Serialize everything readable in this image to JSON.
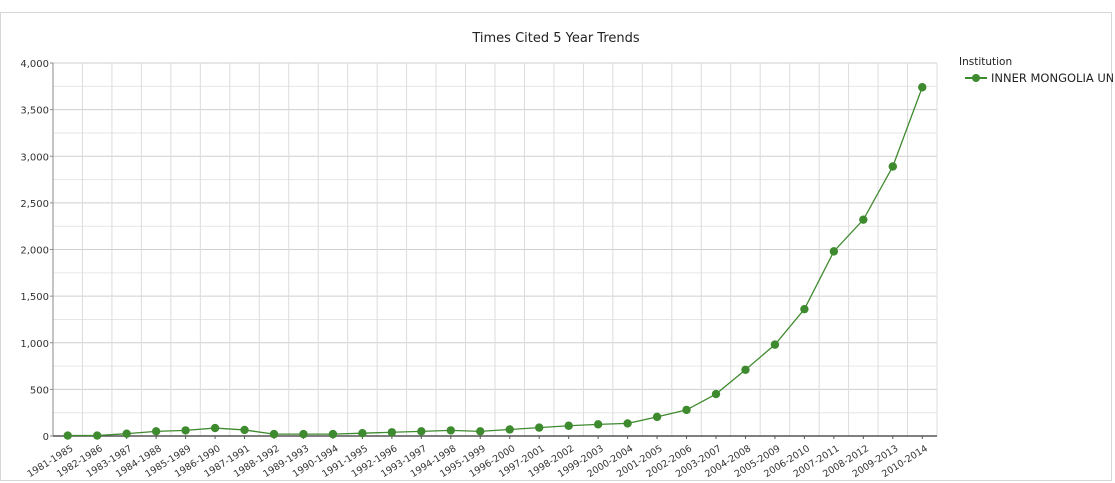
{
  "chart_data": {
    "type": "line",
    "title": "Times Cited 5 Year Trends",
    "xlabel": "",
    "ylabel": "",
    "ylim": [
      0,
      4000
    ],
    "yticks": [
      0,
      500,
      1000,
      1500,
      2000,
      2500,
      3000,
      3500,
      4000
    ],
    "ytick_labels": [
      "0",
      "500",
      "1,000",
      "1,500",
      "2,000",
      "2,500",
      "3,000",
      "3,500",
      "4,000"
    ],
    "grid": true,
    "legend": {
      "title": "Institution",
      "position": "top-right"
    },
    "categories": [
      "1981-1985",
      "1982-1986",
      "1983-1987",
      "1984-1988",
      "1985-1989",
      "1986-1990",
      "1987-1991",
      "1988-1992",
      "1989-1993",
      "1990-1994",
      "1991-1995",
      "1992-1996",
      "1993-1997",
      "1994-1998",
      "1995-1999",
      "1996-2000",
      "1997-2001",
      "1998-2002",
      "1999-2003",
      "2000-2004",
      "2001-2005",
      "2002-2006",
      "2003-2007",
      "2004-2008",
      "2005-2009",
      "2006-2010",
      "2007-2011",
      "2008-2012",
      "2009-2013",
      "2010-2014"
    ],
    "series": [
      {
        "name": "INNER MONGOLIA UNIV",
        "color": "#3e8a2e",
        "values": [
          5,
          5,
          25,
          50,
          60,
          85,
          65,
          20,
          20,
          20,
          30,
          40,
          50,
          60,
          50,
          70,
          90,
          110,
          125,
          135,
          205,
          280,
          450,
          710,
          980,
          1360,
          1980,
          2320,
          2890,
          3740
        ]
      }
    ]
  }
}
